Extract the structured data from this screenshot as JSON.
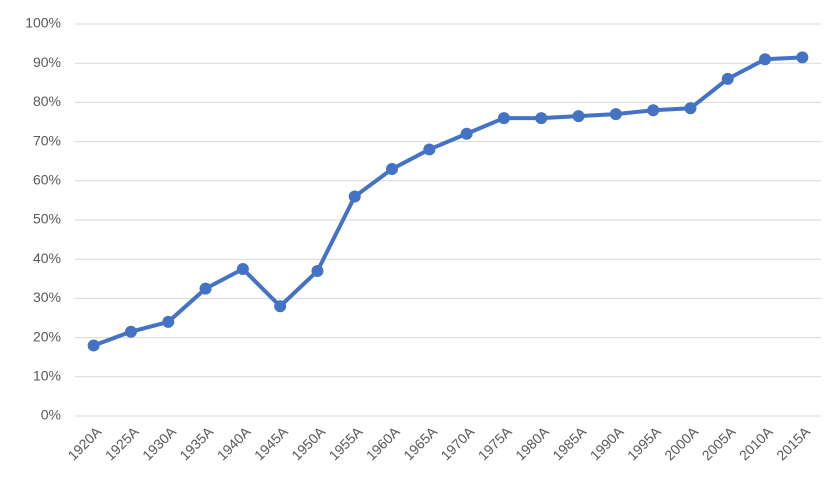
{
  "chart_data": {
    "type": "line",
    "categories": [
      "1920A",
      "1925A",
      "1930A",
      "1935A",
      "1940A",
      "1945A",
      "1950A",
      "1955A",
      "1960A",
      "1965A",
      "1970A",
      "1975A",
      "1980A",
      "1985A",
      "1990A",
      "1995A",
      "2000A",
      "2005A",
      "2010A",
      "2015A"
    ],
    "series": [
      {
        "color": "#4472c4",
        "values": [
          18,
          21.5,
          24,
          32.5,
          37.5,
          28,
          37,
          56,
          63,
          68,
          72,
          76,
          76,
          76.5,
          77,
          78,
          78.5,
          86,
          91,
          91.5
        ]
      }
    ],
    "ylim": [
      0,
      100
    ],
    "yticks": [
      {
        "value": 0,
        "label": "0%"
      },
      {
        "value": 10,
        "label": "10%"
      },
      {
        "value": 20,
        "label": "20%"
      },
      {
        "value": 30,
        "label": "30%"
      },
      {
        "value": 40,
        "label": "40%"
      },
      {
        "value": 50,
        "label": "50%"
      },
      {
        "value": 60,
        "label": "60%"
      },
      {
        "value": 70,
        "label": "70%"
      },
      {
        "value": 80,
        "label": "80%"
      },
      {
        "value": 90,
        "label": "90%"
      },
      {
        "value": 100,
        "label": "100%"
      }
    ],
    "grid": true
  }
}
